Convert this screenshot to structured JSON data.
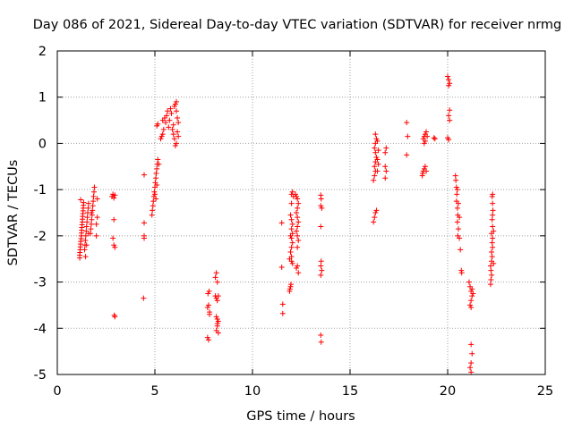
{
  "chart_data": {
    "type": "scatter",
    "title": "Day 086 of 2021, Sidereal Day-to-day VTEC variation (SDTVAR) for receiver nrmg",
    "xlabel": "GPS time / hours",
    "ylabel": "SDTVAR / TECUs",
    "xlim": [
      0,
      25
    ],
    "ylim": [
      -5,
      2
    ],
    "xticks": [
      0,
      5,
      10,
      15,
      20,
      25
    ],
    "yticks": [
      -5,
      -4,
      -3,
      -2,
      -1,
      0,
      1,
      2
    ],
    "grid": true,
    "legend": "none",
    "colors": {
      "marker": "#ff0000",
      "grid": "#a0a0a0",
      "axis": "#000000",
      "background": "#ffffff"
    },
    "series": [
      {
        "name": "SDTVAR",
        "marker": "plus",
        "points": [
          [
            1.15,
            -2.48
          ],
          [
            1.15,
            -2.42
          ],
          [
            1.16,
            -2.36
          ],
          [
            1.17,
            -2.3
          ],
          [
            1.18,
            -2.24
          ],
          [
            1.19,
            -2.18
          ],
          [
            1.2,
            -2.12
          ],
          [
            1.22,
            -2.06
          ],
          [
            1.23,
            -2.0
          ],
          [
            1.24,
            -1.94
          ],
          [
            1.25,
            -1.88
          ],
          [
            1.26,
            -1.82
          ],
          [
            1.27,
            -1.76
          ],
          [
            1.28,
            -1.7
          ],
          [
            1.29,
            -1.64
          ],
          [
            1.3,
            -1.58
          ],
          [
            1.31,
            -1.52
          ],
          [
            1.32,
            -1.46
          ],
          [
            1.33,
            -1.4
          ],
          [
            1.34,
            -1.34
          ],
          [
            1.35,
            -1.28
          ],
          [
            1.2,
            -1.22
          ],
          [
            1.4,
            -2.3
          ],
          [
            1.42,
            -2.2
          ],
          [
            1.44,
            -2.1
          ],
          [
            1.46,
            -2.0
          ],
          [
            1.48,
            -1.9
          ],
          [
            1.5,
            -1.8
          ],
          [
            1.52,
            -1.7
          ],
          [
            1.54,
            -1.6
          ],
          [
            1.56,
            -1.5
          ],
          [
            1.58,
            -1.4
          ],
          [
            1.6,
            -1.3
          ],
          [
            1.5,
            -2.2
          ],
          [
            1.45,
            -2.45
          ],
          [
            1.6,
            -1.95
          ],
          [
            1.7,
            -1.95
          ],
          [
            1.72,
            -1.85
          ],
          [
            1.74,
            -1.75
          ],
          [
            1.76,
            -1.65
          ],
          [
            1.78,
            -1.55
          ],
          [
            1.8,
            -1.45
          ],
          [
            1.82,
            -1.35
          ],
          [
            1.84,
            -1.25
          ],
          [
            1.86,
            -1.15
          ],
          [
            1.88,
            -1.05
          ],
          [
            1.9,
            -0.95
          ],
          [
            1.75,
            -1.5
          ],
          [
            2.0,
            -2.0
          ],
          [
            2.0,
            -1.75
          ],
          [
            2.05,
            -1.6
          ],
          [
            2.05,
            -1.2
          ],
          [
            2.8,
            -1.15
          ],
          [
            2.85,
            -1.1
          ],
          [
            2.9,
            -1.18
          ],
          [
            2.95,
            -1.12
          ],
          [
            2.9,
            -1.65
          ],
          [
            2.85,
            -2.05
          ],
          [
            2.9,
            -2.2
          ],
          [
            2.95,
            -2.25
          ],
          [
            2.92,
            -3.72
          ],
          [
            2.95,
            -3.75
          ],
          [
            4.45,
            -0.68
          ],
          [
            4.45,
            -1.72
          ],
          [
            4.45,
            -2.0
          ],
          [
            4.45,
            -2.05
          ],
          [
            4.42,
            -3.35
          ],
          [
            4.85,
            -1.55
          ],
          [
            4.87,
            -1.45
          ],
          [
            4.9,
            -1.35
          ],
          [
            4.92,
            -1.25
          ],
          [
            4.95,
            -1.15
          ],
          [
            4.97,
            -1.05
          ],
          [
            5.0,
            -0.95
          ],
          [
            5.02,
            -0.85
          ],
          [
            5.05,
            -0.75
          ],
          [
            5.07,
            -0.65
          ],
          [
            5.1,
            -0.55
          ],
          [
            5.12,
            -0.45
          ],
          [
            5.15,
            -0.35
          ],
          [
            5.0,
            -1.1
          ],
          [
            5.05,
            -1.2
          ],
          [
            5.1,
            -0.9
          ],
          [
            5.2,
            -0.45
          ],
          [
            5.1,
            0.38
          ],
          [
            5.15,
            0.42
          ],
          [
            5.3,
            0.1
          ],
          [
            5.35,
            0.15
          ],
          [
            5.4,
            0.2
          ],
          [
            5.45,
            0.3
          ],
          [
            5.4,
            0.5
          ],
          [
            5.5,
            0.55
          ],
          [
            5.55,
            0.45
          ],
          [
            5.6,
            0.6
          ],
          [
            5.65,
            0.7
          ],
          [
            5.7,
            0.35
          ],
          [
            5.75,
            0.5
          ],
          [
            5.8,
            0.75
          ],
          [
            5.85,
            0.65
          ],
          [
            5.9,
            0.3
          ],
          [
            5.95,
            0.4
          ],
          [
            6.0,
            0.8
          ],
          [
            6.05,
            0.85
          ],
          [
            6.1,
            0.7
          ],
          [
            6.15,
            0.55
          ],
          [
            6.2,
            0.45
          ],
          [
            6.0,
            0.1
          ],
          [
            6.1,
            0.0
          ],
          [
            6.05,
            -0.05
          ],
          [
            6.15,
            0.25
          ],
          [
            5.95,
            0.2
          ],
          [
            6.2,
            0.15
          ],
          [
            6.1,
            0.9
          ],
          [
            7.7,
            -4.2
          ],
          [
            7.75,
            -4.25
          ],
          [
            7.7,
            -3.55
          ],
          [
            7.75,
            -3.5
          ],
          [
            7.8,
            -3.7
          ],
          [
            7.72,
            -3.25
          ],
          [
            7.78,
            -3.2
          ],
          [
            7.8,
            -3.65
          ],
          [
            8.1,
            -2.9
          ],
          [
            8.15,
            -2.8
          ],
          [
            8.2,
            -3.0
          ],
          [
            8.1,
            -3.3
          ],
          [
            8.15,
            -3.35
          ],
          [
            8.2,
            -3.4
          ],
          [
            8.25,
            -3.3
          ],
          [
            8.15,
            -3.75
          ],
          [
            8.2,
            -3.8
          ],
          [
            8.25,
            -3.85
          ],
          [
            8.2,
            -3.95
          ],
          [
            8.15,
            -4.05
          ],
          [
            8.25,
            -4.1
          ],
          [
            8.2,
            -3.9
          ],
          [
            11.5,
            -1.72
          ],
          [
            11.5,
            -2.68
          ],
          [
            11.55,
            -3.48
          ],
          [
            11.55,
            -3.68
          ],
          [
            11.9,
            -3.2
          ],
          [
            11.92,
            -3.15
          ],
          [
            11.95,
            -3.1
          ],
          [
            11.97,
            -3.05
          ],
          [
            12.0,
            -2.55
          ],
          [
            12.0,
            -2.45
          ],
          [
            11.95,
            -2.35
          ],
          [
            12.0,
            -2.25
          ],
          [
            12.05,
            -2.15
          ],
          [
            12.0,
            -2.05
          ],
          [
            12.05,
            -1.95
          ],
          [
            12.0,
            -1.85
          ],
          [
            12.05,
            -1.75
          ],
          [
            12.0,
            -1.65
          ],
          [
            11.95,
            -1.55
          ],
          [
            12.0,
            -1.3
          ],
          [
            12.0,
            -1.1
          ],
          [
            12.05,
            -1.05
          ],
          [
            12.1,
            -1.15
          ],
          [
            11.95,
            -2.0
          ],
          [
            12.05,
            -2.6
          ],
          [
            11.9,
            -2.5
          ],
          [
            12.2,
            -1.1
          ],
          [
            12.25,
            -1.15
          ],
          [
            12.3,
            -1.2
          ],
          [
            12.35,
            -1.3
          ],
          [
            12.3,
            -1.4
          ],
          [
            12.25,
            -1.5
          ],
          [
            12.3,
            -1.6
          ],
          [
            12.35,
            -1.7
          ],
          [
            12.3,
            -1.8
          ],
          [
            12.25,
            -1.9
          ],
          [
            12.3,
            -2.0
          ],
          [
            12.35,
            -2.1
          ],
          [
            12.3,
            -2.25
          ],
          [
            12.25,
            -2.7
          ],
          [
            12.3,
            -2.65
          ],
          [
            12.35,
            -2.8
          ],
          [
            13.5,
            -1.12
          ],
          [
            13.52,
            -1.2
          ],
          [
            13.5,
            -1.35
          ],
          [
            13.55,
            -1.4
          ],
          [
            13.5,
            -1.8
          ],
          [
            13.52,
            -2.55
          ],
          [
            13.5,
            -2.65
          ],
          [
            13.55,
            -2.75
          ],
          [
            13.5,
            -2.85
          ],
          [
            13.5,
            -4.15
          ],
          [
            13.52,
            -4.3
          ],
          [
            16.2,
            -1.7
          ],
          [
            16.25,
            -1.6
          ],
          [
            16.3,
            -1.5
          ],
          [
            16.35,
            -1.45
          ],
          [
            16.2,
            -0.8
          ],
          [
            16.25,
            -0.7
          ],
          [
            16.3,
            -0.6
          ],
          [
            16.25,
            -0.5
          ],
          [
            16.3,
            -0.4
          ],
          [
            16.35,
            -0.3
          ],
          [
            16.3,
            -0.2
          ],
          [
            16.25,
            -0.1
          ],
          [
            16.3,
            0.0
          ],
          [
            16.35,
            0.1
          ],
          [
            16.3,
            0.2
          ],
          [
            16.4,
            -0.35
          ],
          [
            16.4,
            0.05
          ],
          [
            16.45,
            -0.15
          ],
          [
            16.4,
            -0.6
          ],
          [
            16.45,
            -0.45
          ],
          [
            16.8,
            -0.2
          ],
          [
            16.85,
            -0.1
          ],
          [
            16.8,
            -0.5
          ],
          [
            16.85,
            -0.6
          ],
          [
            16.8,
            -0.75
          ],
          [
            17.9,
            0.45
          ],
          [
            17.95,
            0.15
          ],
          [
            17.9,
            -0.25
          ],
          [
            18.7,
            -0.7
          ],
          [
            18.72,
            -0.65
          ],
          [
            18.75,
            -0.6
          ],
          [
            18.8,
            -0.55
          ],
          [
            18.85,
            -0.5
          ],
          [
            18.8,
            0.0
          ],
          [
            18.75,
            0.1
          ],
          [
            18.8,
            0.15
          ],
          [
            18.85,
            0.2
          ],
          [
            18.9,
            0.25
          ],
          [
            18.85,
            0.05
          ],
          [
            18.95,
            0.15
          ],
          [
            18.9,
            -0.6
          ],
          [
            19.3,
            0.12
          ],
          [
            19.35,
            0.1
          ],
          [
            20.0,
            1.45
          ],
          [
            20.05,
            1.38
          ],
          [
            20.1,
            1.3
          ],
          [
            20.05,
            1.25
          ],
          [
            20.1,
            0.72
          ],
          [
            20.05,
            0.6
          ],
          [
            20.1,
            0.5
          ],
          [
            20.0,
            0.12
          ],
          [
            20.05,
            0.08
          ],
          [
            20.4,
            -0.7
          ],
          [
            20.42,
            -0.8
          ],
          [
            20.45,
            -0.95
          ],
          [
            20.47,
            -1.1
          ],
          [
            20.45,
            -1.25
          ],
          [
            20.5,
            -1.4
          ],
          [
            20.52,
            -1.55
          ],
          [
            20.5,
            -1.7
          ],
          [
            20.55,
            -1.85
          ],
          [
            20.52,
            -2.0
          ],
          [
            20.6,
            -2.05
          ],
          [
            20.65,
            -2.3
          ],
          [
            20.7,
            -2.75
          ],
          [
            20.72,
            -2.8
          ],
          [
            20.5,
            -1.0
          ],
          [
            20.6,
            -1.6
          ],
          [
            20.55,
            -1.3
          ],
          [
            21.1,
            -3.0
          ],
          [
            21.15,
            -3.1
          ],
          [
            21.2,
            -3.2
          ],
          [
            21.25,
            -3.3
          ],
          [
            21.2,
            -3.4
          ],
          [
            21.15,
            -3.5
          ],
          [
            21.2,
            -3.55
          ],
          [
            21.25,
            -3.15
          ],
          [
            21.3,
            -3.25
          ],
          [
            21.2,
            -4.35
          ],
          [
            21.25,
            -4.55
          ],
          [
            21.2,
            -4.75
          ],
          [
            21.15,
            -4.85
          ],
          [
            21.2,
            -4.95
          ],
          [
            22.2,
            -3.05
          ],
          [
            22.22,
            -2.95
          ],
          [
            22.25,
            -2.85
          ],
          [
            22.22,
            -2.75
          ],
          [
            22.2,
            -2.65
          ],
          [
            22.25,
            -2.55
          ],
          [
            22.28,
            -2.45
          ],
          [
            22.25,
            -2.35
          ],
          [
            22.3,
            -2.25
          ],
          [
            22.28,
            -2.15
          ],
          [
            22.3,
            -2.05
          ],
          [
            22.25,
            -1.95
          ],
          [
            22.3,
            -1.8
          ],
          [
            22.28,
            -1.65
          ],
          [
            22.3,
            -1.55
          ],
          [
            22.32,
            -1.45
          ],
          [
            22.3,
            -1.3
          ],
          [
            22.28,
            -1.15
          ],
          [
            22.3,
            -1.1
          ],
          [
            22.35,
            -2.6
          ],
          [
            22.35,
            -1.9
          ]
        ]
      }
    ]
  }
}
